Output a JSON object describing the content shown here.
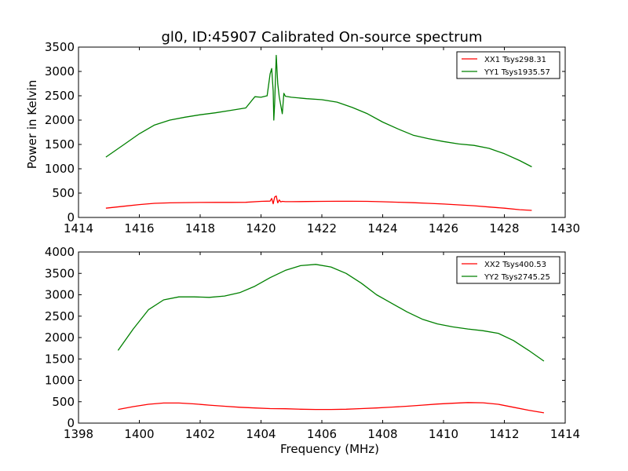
{
  "figure_title": "gl0, ID:45907 Calibrated On-source spectrum",
  "chart_data": [
    {
      "type": "line",
      "title": "",
      "xlabel": "",
      "ylabel": "Power in Kelvin",
      "xlim": [
        1414,
        1430
      ],
      "ylim": [
        0,
        3500
      ],
      "xticks": [
        "1414",
        "1416",
        "1418",
        "1420",
        "1422",
        "1424",
        "1426",
        "1428",
        "1430"
      ],
      "yticks": [
        "0",
        "500",
        "1000",
        "1500",
        "2000",
        "2500",
        "3000",
        "3500"
      ],
      "legend_position": "top-right",
      "grid": false,
      "series": [
        {
          "name": "XX1 Tsys298.31",
          "color": "#ff0000",
          "x": [
            1414.9,
            1415.5,
            1416.0,
            1416.5,
            1417.0,
            1417.5,
            1418.0,
            1418.5,
            1419.0,
            1419.5,
            1420.0,
            1420.3,
            1420.35,
            1420.4,
            1420.45,
            1420.5,
            1420.55,
            1420.6,
            1420.65,
            1420.7,
            1420.8,
            1421.0,
            1421.5,
            1422.0,
            1422.5,
            1423.0,
            1423.5,
            1424.0,
            1424.5,
            1425.0,
            1425.5,
            1426.0,
            1426.5,
            1427.0,
            1427.5,
            1428.0,
            1428.5,
            1428.9
          ],
          "y": [
            190,
            230,
            265,
            290,
            300,
            305,
            308,
            310,
            310,
            312,
            330,
            335,
            390,
            280,
            420,
            440,
            300,
            360,
            320,
            330,
            325,
            325,
            328,
            330,
            332,
            333,
            330,
            322,
            313,
            303,
            290,
            275,
            258,
            240,
            215,
            190,
            160,
            145
          ]
        },
        {
          "name": "YY1 Tsys1935.57",
          "color": "#008000",
          "x": [
            1414.9,
            1415.5,
            1416.0,
            1416.5,
            1417.0,
            1417.5,
            1418.0,
            1418.5,
            1419.0,
            1419.5,
            1419.8,
            1420.0,
            1420.2,
            1420.3,
            1420.35,
            1420.4,
            1420.42,
            1420.45,
            1420.5,
            1420.55,
            1420.6,
            1420.7,
            1420.75,
            1420.8,
            1421.0,
            1421.5,
            1422.0,
            1422.5,
            1423.0,
            1423.5,
            1424.0,
            1424.5,
            1425.0,
            1425.5,
            1426.0,
            1426.5,
            1427.0,
            1427.5,
            1428.0,
            1428.5,
            1428.9
          ],
          "y": [
            1240,
            1500,
            1720,
            1900,
            2000,
            2060,
            2110,
            2150,
            2200,
            2250,
            2480,
            2470,
            2500,
            2950,
            3060,
            2600,
            2000,
            2350,
            3330,
            2750,
            2480,
            2130,
            2550,
            2490,
            2470,
            2440,
            2420,
            2370,
            2260,
            2130,
            1960,
            1820,
            1690,
            1620,
            1560,
            1510,
            1480,
            1420,
            1310,
            1170,
            1040
          ]
        }
      ]
    },
    {
      "type": "line",
      "title": "",
      "xlabel": "Frequency (MHz)",
      "ylabel": "",
      "xlim": [
        1398,
        1414
      ],
      "ylim": [
        0,
        4000
      ],
      "xticks": [
        "1398",
        "1400",
        "1402",
        "1404",
        "1406",
        "1408",
        "1410",
        "1412",
        "1414"
      ],
      "yticks": [
        "0",
        "500",
        "1000",
        "1500",
        "2000",
        "2500",
        "3000",
        "3500",
        "4000"
      ],
      "legend_position": "top-right",
      "grid": false,
      "series": [
        {
          "name": "XX2 Tsys400.53",
          "color": "#ff0000",
          "x": [
            1399.3,
            1399.8,
            1400.3,
            1400.8,
            1401.3,
            1401.8,
            1402.3,
            1402.8,
            1403.3,
            1403.8,
            1404.3,
            1404.8,
            1405.3,
            1405.8,
            1406.3,
            1406.8,
            1407.3,
            1407.8,
            1408.3,
            1408.8,
            1409.3,
            1409.8,
            1410.3,
            1410.8,
            1411.3,
            1411.8,
            1412.3,
            1412.8,
            1413.3
          ],
          "y": [
            320,
            385,
            440,
            470,
            470,
            450,
            420,
            395,
            370,
            355,
            340,
            335,
            325,
            320,
            320,
            325,
            340,
            355,
            375,
            395,
            420,
            445,
            465,
            480,
            475,
            440,
            370,
            300,
            240
          ]
        },
        {
          "name": "YY2 Tsys2745.25",
          "color": "#008000",
          "x": [
            1399.3,
            1399.8,
            1400.3,
            1400.8,
            1401.3,
            1401.8,
            1402.3,
            1402.8,
            1403.3,
            1403.8,
            1404.3,
            1404.8,
            1405.3,
            1405.8,
            1406.3,
            1406.8,
            1407.3,
            1407.8,
            1408.3,
            1408.8,
            1409.3,
            1409.8,
            1410.3,
            1410.8,
            1411.3,
            1411.8,
            1412.3,
            1412.8,
            1413.3
          ],
          "y": [
            1700,
            2200,
            2650,
            2880,
            2950,
            2950,
            2940,
            2970,
            3050,
            3200,
            3400,
            3570,
            3680,
            3710,
            3650,
            3500,
            3270,
            3000,
            2800,
            2600,
            2430,
            2320,
            2250,
            2200,
            2160,
            2100,
            1930,
            1700,
            1450
          ]
        }
      ]
    }
  ]
}
